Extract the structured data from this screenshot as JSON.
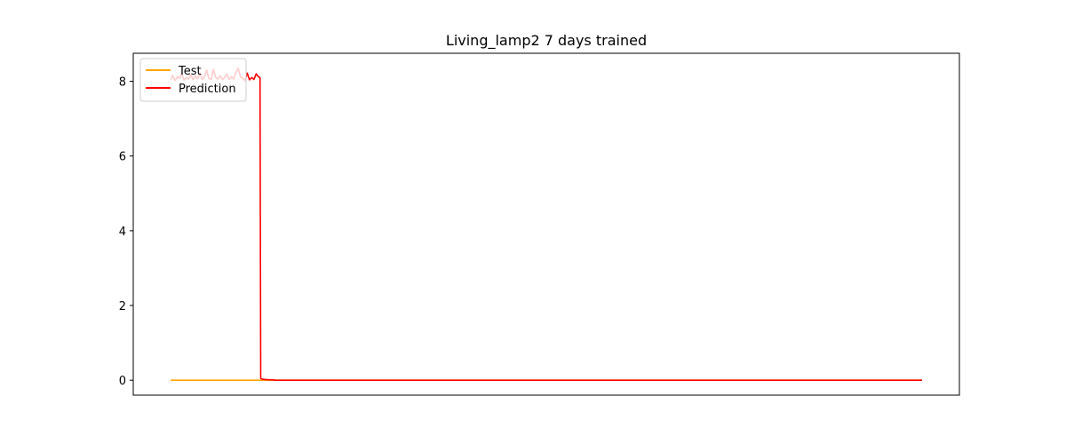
{
  "chart_data": {
    "type": "line",
    "title": "Living_lamp2 7 days trained",
    "xlabel": "",
    "ylabel": "",
    "xlim": [
      0,
      1000
    ],
    "ylim": [
      -0.4,
      8.75
    ],
    "x_ticks_visible": false,
    "y_ticks": [
      0,
      2,
      4,
      6,
      8
    ],
    "y_tick_labels": [
      "0",
      "2",
      "4",
      "6",
      "8"
    ],
    "grid": false,
    "legend": {
      "placement": "top-left",
      "entries": [
        "Test",
        "Prediction"
      ]
    },
    "series": [
      {
        "name": "Test",
        "color": "#ffa500",
        "x": [
          0,
          1000
        ],
        "y": [
          0,
          0
        ]
      },
      {
        "name": "Prediction",
        "color": "#ff0000",
        "x": [
          0,
          3,
          6,
          9,
          12,
          15,
          18,
          21,
          24,
          27,
          30,
          33,
          36,
          39,
          42,
          45,
          48,
          51,
          54,
          57,
          60,
          63,
          66,
          69,
          72,
          75,
          78,
          81,
          84,
          87,
          90,
          93,
          96,
          99,
          102,
          105,
          108,
          111,
          114,
          117,
          119,
          120,
          122,
          125,
          130,
          135,
          140,
          145,
          150,
          200,
          300,
          400,
          500,
          600,
          700,
          800,
          900,
          1000
        ],
        "y": [
          8.05,
          8.15,
          8.02,
          8.12,
          8.08,
          8.2,
          8.03,
          8.1,
          8.06,
          8.18,
          8.04,
          8.14,
          8.07,
          8.22,
          8.05,
          8.12,
          8.3,
          8.08,
          8.05,
          8.32,
          8.1,
          8.06,
          8.15,
          8.04,
          8.1,
          8.2,
          8.05,
          8.12,
          8.06,
          8.25,
          8.35,
          8.12,
          8.08,
          8.02,
          8.22,
          8.04,
          8.1,
          8.05,
          8.2,
          8.12,
          8.1,
          0.05,
          0.03,
          0.02,
          0.01,
          0.01,
          0.0,
          0.0,
          0.0,
          0.0,
          0.0,
          0.0,
          0.0,
          0.0,
          0.0,
          0.0,
          0.0,
          0.0
        ]
      }
    ]
  }
}
